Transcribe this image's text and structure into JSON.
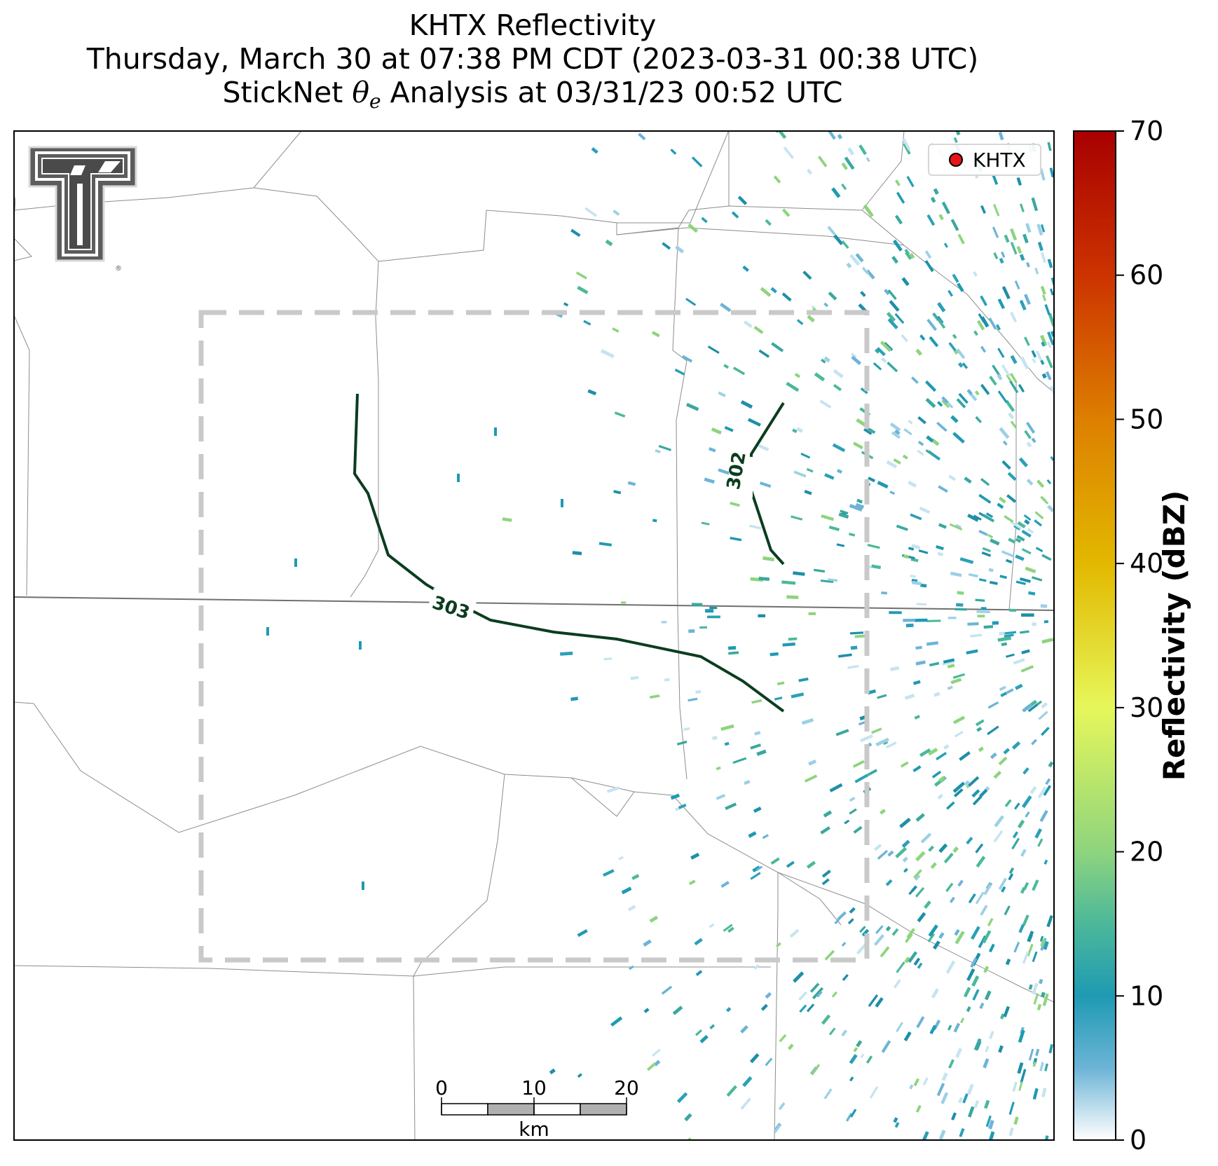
{
  "title": {
    "line1": "KHTX Reflectivity",
    "line2": "Thursday, March 30 at 07:38 PM CDT (2023-03-31 00:38 UTC)",
    "line3_prefix": "StickNet ",
    "line3_theta": "θ",
    "line3_sub": "e",
    "line3_suffix": " Analysis at 03/31/23 00:52 UTC"
  },
  "legend": {
    "label": "KHTX",
    "marker_color": "#e8141a"
  },
  "logo": {
    "name": "Texas Tech double-T logo",
    "mark": "®"
  },
  "contours": [
    {
      "value": "303",
      "color": "#0b3d1f"
    },
    {
      "value": "302",
      "color": "#0b3d1f"
    }
  ],
  "colorbar": {
    "label": "Reflectivity (dBZ)",
    "ticks": [
      "0",
      "10",
      "20",
      "30",
      "40",
      "50",
      "60",
      "70"
    ],
    "min": 0,
    "max": 70,
    "stops": [
      {
        "v": 0,
        "color": "#ffffff"
      },
      {
        "v": 5,
        "color": "#6cb4d6"
      },
      {
        "v": 10,
        "color": "#1f9ab3"
      },
      {
        "v": 15,
        "color": "#4cb89a"
      },
      {
        "v": 20,
        "color": "#8ed47e"
      },
      {
        "v": 30,
        "color": "#e6f75a"
      },
      {
        "v": 40,
        "color": "#e2b800"
      },
      {
        "v": 50,
        "color": "#dd7f00"
      },
      {
        "v": 60,
        "color": "#cc3300"
      },
      {
        "v": 70,
        "color": "#a80000"
      }
    ]
  },
  "scalebar": {
    "labels": [
      "0",
      "10",
      "20"
    ],
    "unit": "km"
  }
}
